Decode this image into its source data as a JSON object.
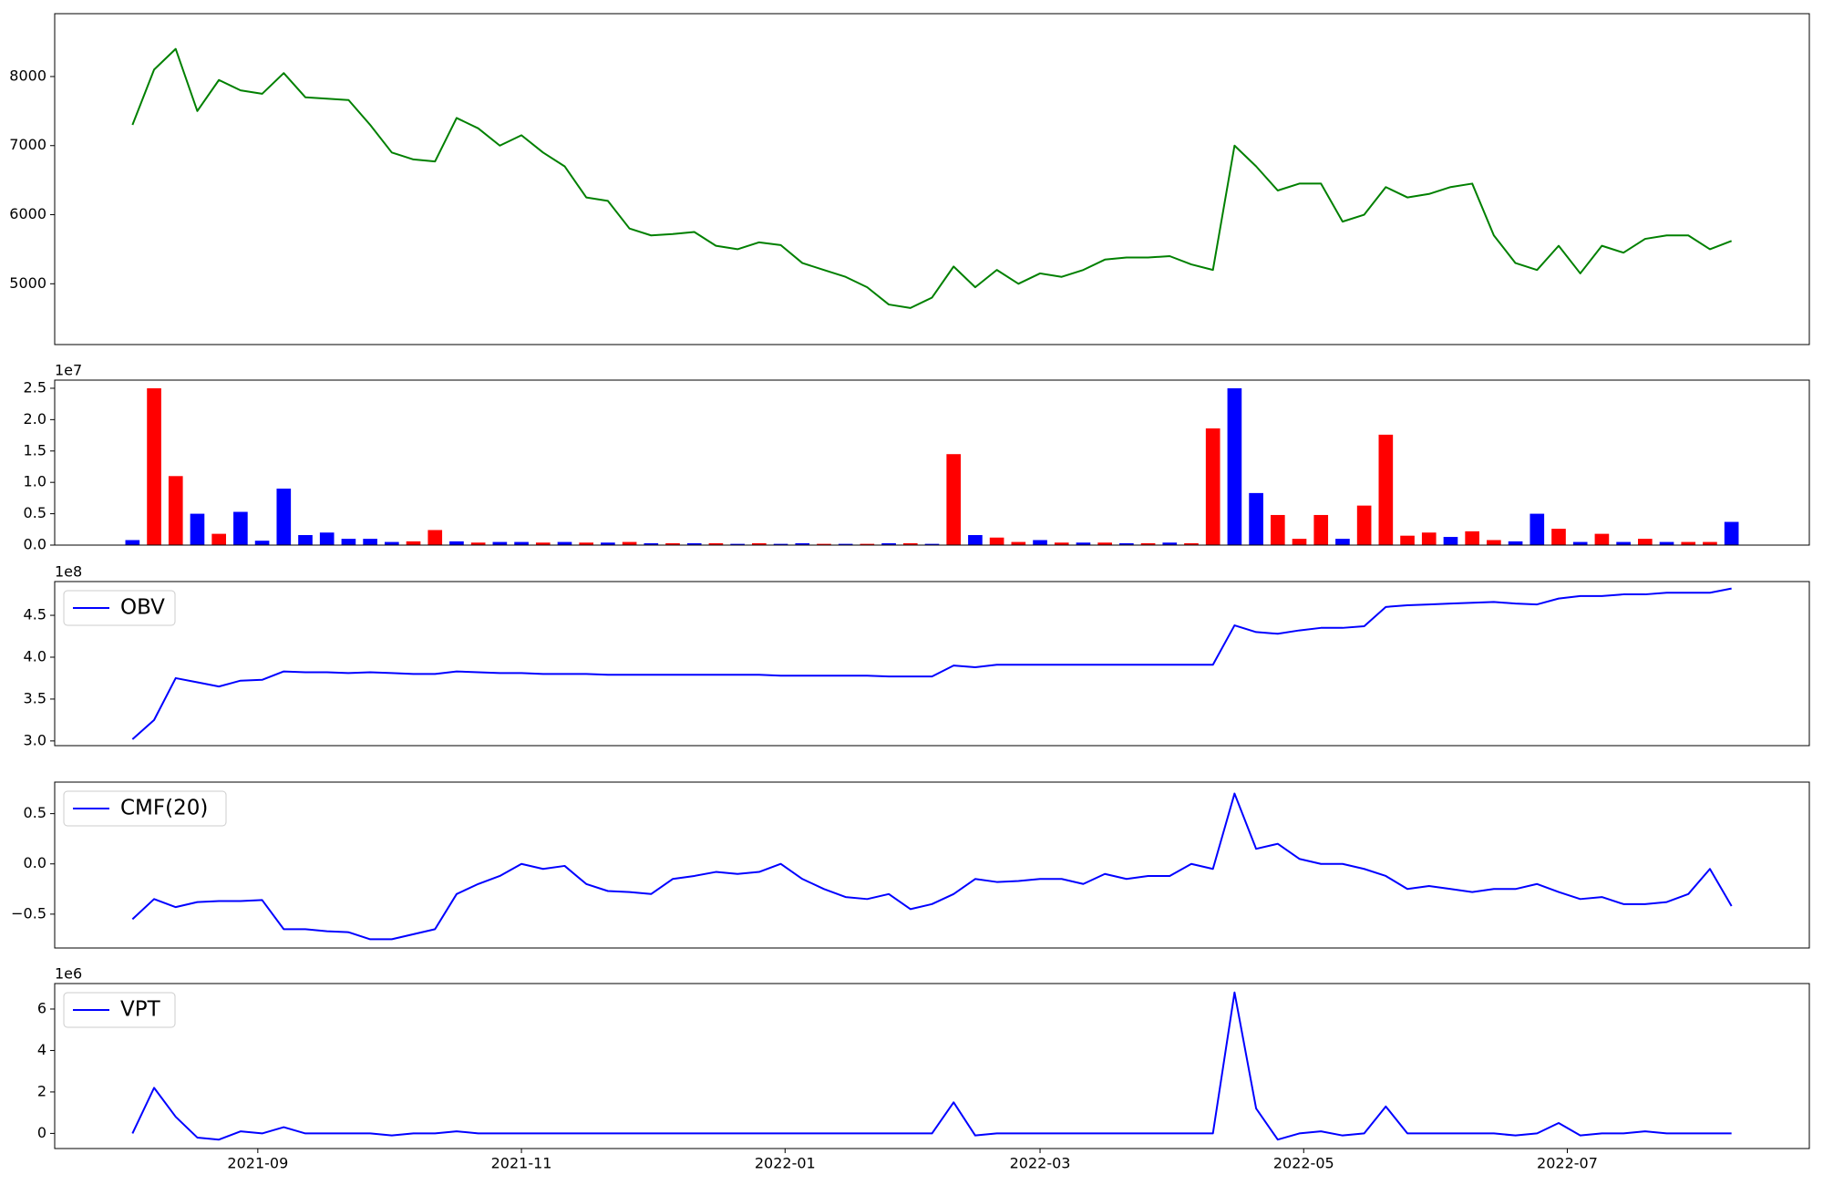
{
  "chart_data": [
    {
      "type": "line",
      "color": "#008000",
      "x": [
        "2021-08-03",
        "2021-08-08",
        "2021-08-13",
        "2021-08-18",
        "2021-08-23",
        "2021-08-28",
        "2021-09-02",
        "2021-09-07",
        "2021-09-12",
        "2021-09-17",
        "2021-09-22",
        "2021-09-27",
        "2021-10-02",
        "2021-10-07",
        "2021-10-12",
        "2021-10-17",
        "2021-10-22",
        "2021-10-27",
        "2021-11-01",
        "2021-11-06",
        "2021-11-11",
        "2021-11-16",
        "2021-11-21",
        "2021-11-26",
        "2021-12-01",
        "2021-12-06",
        "2021-12-11",
        "2021-12-16",
        "2021-12-21",
        "2021-12-26",
        "2021-12-31",
        "2022-01-05",
        "2022-01-10",
        "2022-01-15",
        "2022-01-20",
        "2022-01-25",
        "2022-01-30",
        "2022-02-04",
        "2022-02-09",
        "2022-02-14",
        "2022-02-19",
        "2022-02-24",
        "2022-03-01",
        "2022-03-06",
        "2022-03-11",
        "2022-03-16",
        "2022-03-21",
        "2022-03-26",
        "2022-03-31",
        "2022-04-05",
        "2022-04-10",
        "2022-04-15",
        "2022-04-20",
        "2022-04-25",
        "2022-04-30",
        "2022-05-05",
        "2022-05-10",
        "2022-05-15",
        "2022-05-20",
        "2022-05-25",
        "2022-05-30",
        "2022-06-04",
        "2022-06-09",
        "2022-06-14",
        "2022-06-19",
        "2022-06-24",
        "2022-06-29",
        "2022-07-04",
        "2022-07-09",
        "2022-07-14",
        "2022-07-19",
        "2022-07-24",
        "2022-07-29",
        "2022-08-03",
        "2022-08-08"
      ],
      "values": [
        7300,
        8100,
        8400,
        7500,
        7950,
        7800,
        7750,
        8050,
        7700,
        7680,
        7660,
        7300,
        6900,
        6800,
        6770,
        7400,
        7250,
        7000,
        7150,
        6900,
        6700,
        6250,
        6200,
        5800,
        5700,
        5720,
        5750,
        5550,
        5500,
        5600,
        5560,
        5300,
        5200,
        5100,
        4950,
        4700,
        4650,
        4800,
        5250,
        4950,
        5200,
        5000,
        5150,
        5100,
        5200,
        5350,
        5380,
        5380,
        5400,
        5280,
        5200,
        7000,
        6700,
        6350,
        6450,
        6450,
        5900,
        6000,
        6400,
        6250,
        6300,
        6400,
        6450,
        5700,
        5300,
        5200,
        5550,
        5150,
        5550,
        5450,
        5650,
        5700,
        5700,
        5500,
        5620
      ],
      "xlim": [
        "2021-07-16",
        "2022-08-26"
      ],
      "ylim": [
        4120,
        8910
      ],
      "yticks": [
        5000,
        6000,
        7000,
        8000
      ]
    },
    {
      "type": "bar",
      "offset_label": "1e7",
      "x": [
        "2021-08-03",
        "2021-08-08",
        "2021-08-13",
        "2021-08-18",
        "2021-08-23",
        "2021-08-28",
        "2021-09-02",
        "2021-09-07",
        "2021-09-12",
        "2021-09-17",
        "2021-09-22",
        "2021-09-27",
        "2021-10-02",
        "2021-10-07",
        "2021-10-12",
        "2021-10-17",
        "2021-10-22",
        "2021-10-27",
        "2021-11-01",
        "2021-11-06",
        "2021-11-11",
        "2021-11-16",
        "2021-11-21",
        "2021-11-26",
        "2021-12-01",
        "2021-12-06",
        "2021-12-11",
        "2021-12-16",
        "2021-12-21",
        "2021-12-26",
        "2021-12-31",
        "2022-01-05",
        "2022-01-10",
        "2022-01-15",
        "2022-01-20",
        "2022-01-25",
        "2022-01-30",
        "2022-02-04",
        "2022-02-09",
        "2022-02-14",
        "2022-02-19",
        "2022-02-24",
        "2022-03-01",
        "2022-03-06",
        "2022-03-11",
        "2022-03-16",
        "2022-03-21",
        "2022-03-26",
        "2022-03-31",
        "2022-04-05",
        "2022-04-10",
        "2022-04-15",
        "2022-04-20",
        "2022-04-25",
        "2022-04-30",
        "2022-05-05",
        "2022-05-10",
        "2022-05-15",
        "2022-05-20",
        "2022-05-25",
        "2022-05-30",
        "2022-06-04",
        "2022-06-09",
        "2022-06-14",
        "2022-06-19",
        "2022-06-24",
        "2022-06-29",
        "2022-07-04",
        "2022-07-09",
        "2022-07-14",
        "2022-07-19",
        "2022-07-24",
        "2022-07-29",
        "2022-08-03",
        "2022-08-08"
      ],
      "values": [
        800000,
        25000000,
        11000000,
        5000000,
        1800000,
        5300000,
        700000,
        9000000,
        1600000,
        2000000,
        1000000,
        1000000,
        500000,
        600000,
        2400000,
        600000,
        400000,
        500000,
        500000,
        400000,
        500000,
        400000,
        400000,
        500000,
        300000,
        300000,
        300000,
        300000,
        200000,
        300000,
        200000,
        300000,
        200000,
        200000,
        200000,
        300000,
        300000,
        200000,
        14500000,
        1600000,
        1200000,
        500000,
        800000,
        400000,
        400000,
        400000,
        300000,
        300000,
        400000,
        300000,
        18600000,
        25000000,
        8300000,
        4800000,
        1000000,
        4800000,
        1000000,
        6300000,
        17600000,
        1500000,
        2000000,
        1300000,
        2200000,
        800000,
        600000,
        5000000,
        2600000,
        500000,
        1800000,
        500000,
        1000000,
        500000,
        500000,
        500000,
        3700000
      ],
      "colors": [
        "#0000ff",
        "#ff0000",
        "#ff0000",
        "#0000ff",
        "#ff0000",
        "#0000ff",
        "#0000ff",
        "#0000ff",
        "#0000ff",
        "#0000ff",
        "#0000ff",
        "#0000ff",
        "#0000ff",
        "#ff0000",
        "#ff0000",
        "#0000ff",
        "#ff0000",
        "#0000ff",
        "#0000ff",
        "#ff0000",
        "#0000ff",
        "#ff0000",
        "#0000ff",
        "#ff0000",
        "#0000ff",
        "#ff0000",
        "#0000ff",
        "#ff0000",
        "#0000ff",
        "#ff0000",
        "#0000ff",
        "#0000ff",
        "#ff0000",
        "#0000ff",
        "#ff0000",
        "#0000ff",
        "#ff0000",
        "#0000ff",
        "#ff0000",
        "#0000ff",
        "#ff0000",
        "#ff0000",
        "#0000ff",
        "#ff0000",
        "#0000ff",
        "#ff0000",
        "#0000ff",
        "#ff0000",
        "#0000ff",
        "#ff0000",
        "#ff0000",
        "#0000ff",
        "#0000ff",
        "#ff0000",
        "#ff0000",
        "#ff0000",
        "#0000ff",
        "#ff0000",
        "#ff0000",
        "#ff0000",
        "#ff0000",
        "#0000ff",
        "#ff0000",
        "#ff0000",
        "#0000ff",
        "#0000ff",
        "#ff0000",
        "#0000ff",
        "#ff0000",
        "#0000ff",
        "#ff0000",
        "#0000ff",
        "#ff0000",
        "#ff0000",
        "#0000ff"
      ],
      "xlim": [
        "2021-07-16",
        "2022-08-26"
      ],
      "ylim": [
        0,
        26300000
      ],
      "yticks": [
        {
          "value": 0,
          "label": "0.0"
        },
        {
          "value": 5000000,
          "label": "0.5"
        },
        {
          "value": 10000000,
          "label": "1.0"
        },
        {
          "value": 15000000,
          "label": "1.5"
        },
        {
          "value": 20000000,
          "label": "2.0"
        },
        {
          "value": 25000000,
          "label": "2.5"
        }
      ]
    },
    {
      "type": "line",
      "offset_label": "1e8",
      "legend": "upper left",
      "x": [
        "2021-08-03",
        "2021-08-08",
        "2021-08-13",
        "2021-08-18",
        "2021-08-23",
        "2021-08-28",
        "2021-09-02",
        "2021-09-07",
        "2021-09-12",
        "2021-09-17",
        "2021-09-22",
        "2021-09-27",
        "2021-10-02",
        "2021-10-07",
        "2021-10-12",
        "2021-10-17",
        "2021-10-22",
        "2021-10-27",
        "2021-11-01",
        "2021-11-06",
        "2021-11-11",
        "2021-11-16",
        "2021-11-21",
        "2021-11-26",
        "2021-12-01",
        "2021-12-06",
        "2021-12-11",
        "2021-12-16",
        "2021-12-21",
        "2021-12-26",
        "2021-12-31",
        "2022-01-05",
        "2022-01-10",
        "2022-01-15",
        "2022-01-20",
        "2022-01-25",
        "2022-01-30",
        "2022-02-04",
        "2022-02-09",
        "2022-02-14",
        "2022-02-19",
        "2022-02-24",
        "2022-03-01",
        "2022-03-06",
        "2022-03-11",
        "2022-03-16",
        "2022-03-21",
        "2022-03-26",
        "2022-03-31",
        "2022-04-05",
        "2022-04-10",
        "2022-04-15",
        "2022-04-20",
        "2022-04-25",
        "2022-04-30",
        "2022-05-05",
        "2022-05-10",
        "2022-05-15",
        "2022-05-20",
        "2022-05-25",
        "2022-05-30",
        "2022-06-04",
        "2022-06-09",
        "2022-06-14",
        "2022-06-19",
        "2022-06-24",
        "2022-06-29",
        "2022-07-04",
        "2022-07-09",
        "2022-07-14",
        "2022-07-19",
        "2022-07-24",
        "2022-07-29",
        "2022-08-03",
        "2022-08-08"
      ],
      "series": [
        {
          "name": "OBV",
          "color": "#0000ff",
          "values": [
            302000000,
            325000000,
            375000000,
            370000000,
            365000000,
            372000000,
            373000000,
            383000000,
            382000000,
            382000000,
            381000000,
            382000000,
            381000000,
            380000000,
            380000000,
            383000000,
            382000000,
            381000000,
            381000000,
            380000000,
            380000000,
            380000000,
            379000000,
            379000000,
            379000000,
            379000000,
            379000000,
            379000000,
            379000000,
            379000000,
            378000000,
            378000000,
            378000000,
            378000000,
            378000000,
            377000000,
            377000000,
            377000000,
            390000000,
            388000000,
            391000000,
            391000000,
            391000000,
            391000000,
            391000000,
            391000000,
            391000000,
            391000000,
            391000000,
            391000000,
            391000000,
            438000000,
            430000000,
            428000000,
            432000000,
            435000000,
            435000000,
            437000000,
            460000000,
            462000000,
            463000000,
            464000000,
            465000000,
            466000000,
            464000000,
            463000000,
            470000000,
            473000000,
            473000000,
            475000000,
            475000000,
            477000000,
            477000000,
            477000000,
            482000000
          ]
        }
      ],
      "xlim": [
        "2021-07-16",
        "2022-08-26"
      ],
      "ylim": [
        294400000,
        490300000
      ],
      "yticks": [
        {
          "value": 300000000,
          "label": "3.0"
        },
        {
          "value": 350000000,
          "label": "3.5"
        },
        {
          "value": 400000000,
          "label": "4.0"
        },
        {
          "value": 450000000,
          "label": "4.5"
        }
      ]
    },
    {
      "type": "line",
      "legend": "upper left",
      "x": [
        "2021-08-03",
        "2021-08-08",
        "2021-08-13",
        "2021-08-18",
        "2021-08-23",
        "2021-08-28",
        "2021-09-02",
        "2021-09-07",
        "2021-09-12",
        "2021-09-17",
        "2021-09-22",
        "2021-09-27",
        "2021-10-02",
        "2021-10-07",
        "2021-10-12",
        "2021-10-17",
        "2021-10-22",
        "2021-10-27",
        "2021-11-01",
        "2021-11-06",
        "2021-11-11",
        "2021-11-16",
        "2021-11-21",
        "2021-11-26",
        "2021-12-01",
        "2021-12-06",
        "2021-12-11",
        "2021-12-16",
        "2021-12-21",
        "2021-12-26",
        "2021-12-31",
        "2022-01-05",
        "2022-01-10",
        "2022-01-15",
        "2022-01-20",
        "2022-01-25",
        "2022-01-30",
        "2022-02-04",
        "2022-02-09",
        "2022-02-14",
        "2022-02-19",
        "2022-02-24",
        "2022-03-01",
        "2022-03-06",
        "2022-03-11",
        "2022-03-16",
        "2022-03-21",
        "2022-03-26",
        "2022-03-31",
        "2022-04-05",
        "2022-04-10",
        "2022-04-15",
        "2022-04-20",
        "2022-04-25",
        "2022-04-30",
        "2022-05-05",
        "2022-05-10",
        "2022-05-15",
        "2022-05-20",
        "2022-05-25",
        "2022-05-30",
        "2022-06-04",
        "2022-06-09",
        "2022-06-14",
        "2022-06-19",
        "2022-06-24",
        "2022-06-29",
        "2022-07-04",
        "2022-07-09",
        "2022-07-14",
        "2022-07-19",
        "2022-07-24",
        "2022-07-29",
        "2022-08-03",
        "2022-08-08"
      ],
      "series": [
        {
          "name": "CMF(20)",
          "color": "#0000ff",
          "values": [
            -0.55,
            -0.35,
            -0.43,
            -0.38,
            -0.37,
            -0.37,
            -0.36,
            -0.65,
            -0.65,
            -0.67,
            -0.68,
            -0.75,
            -0.75,
            -0.7,
            -0.65,
            -0.3,
            -0.2,
            -0.12,
            0.0,
            -0.05,
            -0.02,
            -0.2,
            -0.27,
            -0.28,
            -0.3,
            -0.15,
            -0.12,
            -0.08,
            -0.1,
            -0.08,
            0.0,
            -0.15,
            -0.25,
            -0.33,
            -0.35,
            -0.3,
            -0.45,
            -0.4,
            -0.3,
            -0.15,
            -0.18,
            -0.17,
            -0.15,
            -0.15,
            -0.2,
            -0.1,
            -0.15,
            -0.12,
            -0.12,
            0.0,
            -0.05,
            0.7,
            0.15,
            0.2,
            0.05,
            0.0,
            0.0,
            -0.05,
            -0.12,
            -0.25,
            -0.22,
            -0.25,
            -0.28,
            -0.25,
            -0.25,
            -0.2,
            -0.28,
            -0.35,
            -0.33,
            -0.4,
            -0.4,
            -0.38,
            -0.3,
            -0.05,
            -0.42
          ]
        }
      ],
      "xlim": [
        "2021-07-16",
        "2022-08-26"
      ],
      "ylim": [
        -0.837,
        0.814
      ],
      "yticks": [
        {
          "value": -0.5,
          "label": "−0.5"
        },
        {
          "value": 0,
          "label": "0.0"
        },
        0.5
      ]
    },
    {
      "type": "line",
      "offset_label": "1e6",
      "legend": "upper left",
      "x": [
        "2021-08-03",
        "2021-08-08",
        "2021-08-13",
        "2021-08-18",
        "2021-08-23",
        "2021-08-28",
        "2021-09-02",
        "2021-09-07",
        "2021-09-12",
        "2021-09-17",
        "2021-09-22",
        "2021-09-27",
        "2021-10-02",
        "2021-10-07",
        "2021-10-12",
        "2021-10-17",
        "2021-10-22",
        "2021-10-27",
        "2021-11-01",
        "2021-11-06",
        "2021-11-11",
        "2021-11-16",
        "2021-11-21",
        "2021-11-26",
        "2021-12-01",
        "2021-12-06",
        "2021-12-11",
        "2021-12-16",
        "2021-12-21",
        "2021-12-26",
        "2021-12-31",
        "2022-01-05",
        "2022-01-10",
        "2022-01-15",
        "2022-01-20",
        "2022-01-25",
        "2022-01-30",
        "2022-02-04",
        "2022-02-09",
        "2022-02-14",
        "2022-02-19",
        "2022-02-24",
        "2022-03-01",
        "2022-03-06",
        "2022-03-11",
        "2022-03-16",
        "2022-03-21",
        "2022-03-26",
        "2022-03-31",
        "2022-04-05",
        "2022-04-10",
        "2022-04-15",
        "2022-04-20",
        "2022-04-25",
        "2022-04-30",
        "2022-05-05",
        "2022-05-10",
        "2022-05-15",
        "2022-05-20",
        "2022-05-25",
        "2022-05-30",
        "2022-06-04",
        "2022-06-09",
        "2022-06-14",
        "2022-06-19",
        "2022-06-24",
        "2022-06-29",
        "2022-07-04",
        "2022-07-09",
        "2022-07-14",
        "2022-07-19",
        "2022-07-24",
        "2022-07-29",
        "2022-08-03",
        "2022-08-08"
      ],
      "series": [
        {
          "name": "VPT",
          "color": "#0000ff",
          "values": [
            0,
            2200000,
            800000,
            -200000,
            -300000,
            100000,
            0,
            300000,
            0,
            0,
            0,
            0,
            -100000,
            0,
            0,
            100000,
            0,
            0,
            0,
            0,
            0,
            0,
            0,
            0,
            0,
            0,
            0,
            0,
            0,
            0,
            0,
            0,
            0,
            0,
            0,
            0,
            0,
            0,
            1500000,
            -100000,
            0,
            0,
            0,
            0,
            0,
            0,
            0,
            0,
            0,
            0,
            0,
            6800000,
            1200000,
            -300000,
            0,
            100000,
            -100000,
            0,
            1300000,
            0,
            0,
            0,
            0,
            0,
            -100000,
            0,
            500000,
            -100000,
            0,
            0,
            100000,
            0,
            0,
            0,
            0
          ]
        }
      ],
      "xlim": [
        "2021-07-16",
        "2022-08-26"
      ],
      "ylim": [
        -730000,
        7230000
      ],
      "yticks": [
        {
          "value": 0,
          "label": "0"
        },
        {
          "value": 2000000,
          "label": "2"
        },
        {
          "value": 4000000,
          "label": "4"
        },
        {
          "value": 6000000,
          "label": "6"
        }
      ],
      "xticks": [
        {
          "value": "2021-09-01",
          "label": "2021-09"
        },
        {
          "value": "2021-11-01",
          "label": "2021-11"
        },
        {
          "value": "2022-01-01",
          "label": "2022-01"
        },
        {
          "value": "2022-03-01",
          "label": "2022-03"
        },
        {
          "value": "2022-05-01",
          "label": "2022-05"
        },
        {
          "value": "2022-07-01",
          "label": "2022-07"
        }
      ]
    }
  ]
}
